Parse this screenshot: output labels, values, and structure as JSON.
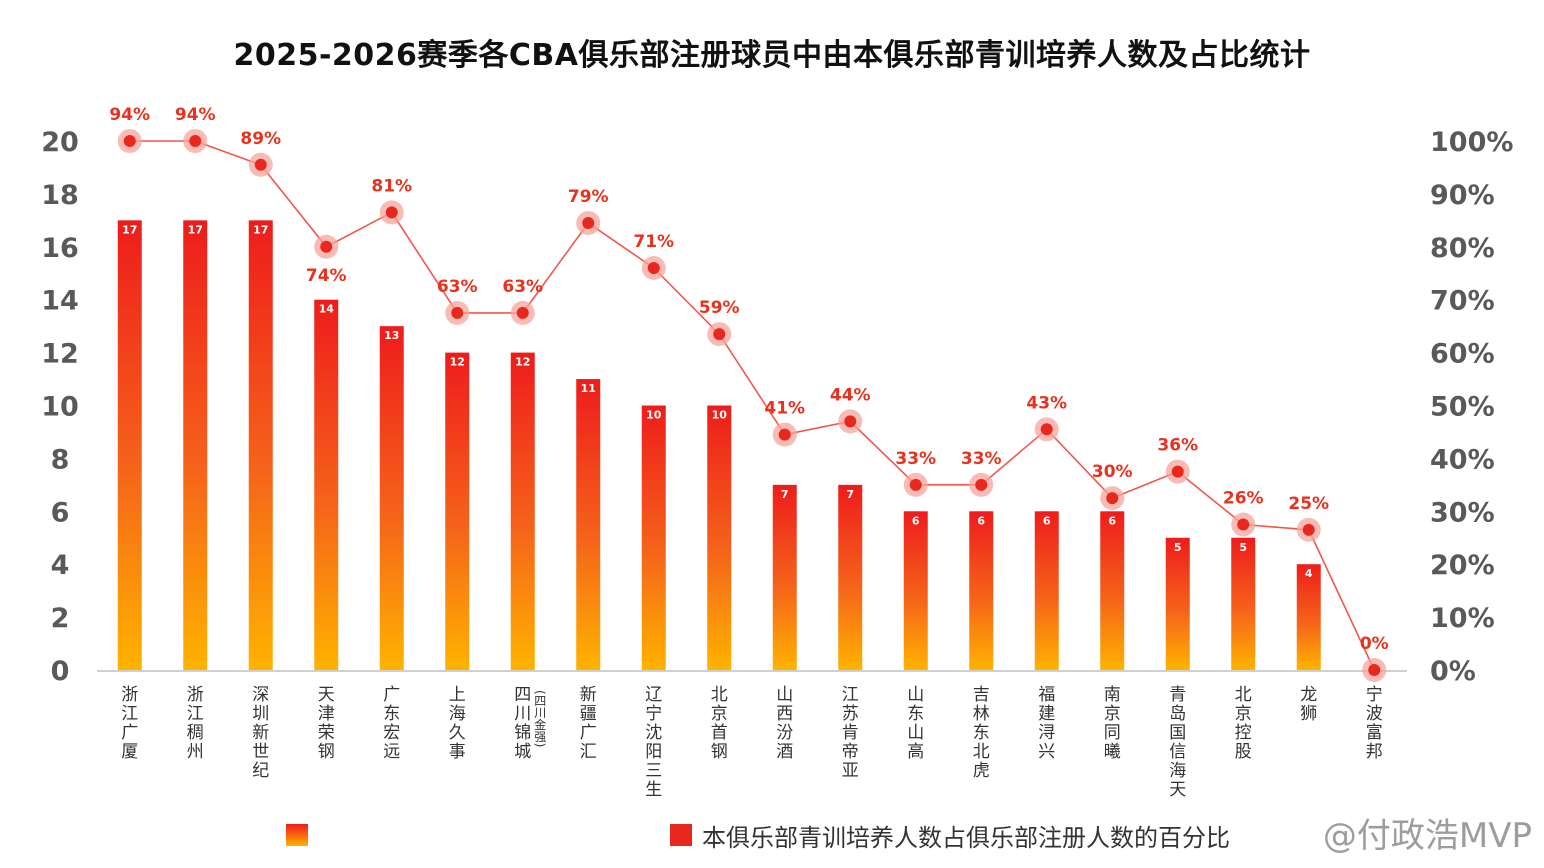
{
  "chart_data": {
    "type": "bar",
    "title": "2025-2026赛季各CBA俱乐部注册球员中由本俱乐部青训培养人数及占比统计",
    "categories": [
      "浙江广厦",
      "浙江稠州",
      "深圳新世纪",
      "天津荣钢",
      "广东宏远",
      "上海久事",
      "四川锦城(四川金强)",
      "新疆广汇",
      "辽宁沈阳三生",
      "北京首钢",
      "山西汾酒",
      "江苏肯帝亚",
      "山东山高",
      "吉林东北虎",
      "福建浔兴",
      "南京同曦",
      "青岛国信海天",
      "北京控股",
      "龙狮",
      "宁波富邦"
    ],
    "category_lines": [
      [
        "浙",
        "江",
        "广",
        "厦"
      ],
      [
        "浙",
        "江",
        "稠",
        "州"
      ],
      [
        "深",
        "圳",
        "新",
        "世",
        "纪"
      ],
      [
        "天",
        "津",
        "荣",
        "钢"
      ],
      [
        "广",
        "东",
        "宏",
        "远"
      ],
      [
        "上",
        "海",
        "久",
        "事"
      ],
      [
        "四",
        "川",
        "锦",
        "城"
      ],
      [
        "新",
        "疆",
        "广",
        "汇"
      ],
      [
        "辽",
        "宁",
        "沈",
        "阳",
        "三",
        "生"
      ],
      [
        "北",
        "京",
        "首",
        "钢"
      ],
      [
        "山",
        "西",
        "汾",
        "酒"
      ],
      [
        "江",
        "苏",
        "肯",
        "帝",
        "亚"
      ],
      [
        "山",
        "东",
        "山",
        "高"
      ],
      [
        "吉",
        "林",
        "东",
        "北",
        "虎"
      ],
      [
        "福",
        "建",
        "浔",
        "兴"
      ],
      [
        "南",
        "京",
        "同",
        "曦"
      ],
      [
        "青",
        "岛",
        "国",
        "信",
        "海",
        "天"
      ],
      [
        "北",
        "京",
        "控",
        "股"
      ],
      [
        "龙",
        "狮"
      ],
      [
        "宁",
        "波",
        "富",
        "邦"
      ]
    ],
    "category_side_note": [
      "",
      "",
      "",
      "",
      "",
      "",
      "(四川金强)",
      "",
      "",
      "",
      "",
      "",
      "",
      "",
      "",
      "",
      "",
      "",
      "",
      ""
    ],
    "series": [
      {
        "values": [
          17,
          17,
          17,
          14,
          13,
          12,
          12,
          11,
          10,
          10,
          7,
          7,
          6,
          6,
          6,
          6,
          5,
          5,
          4,
          0
        ],
        "axis": "left",
        "type": "bar"
      },
      {
        "values": [
          94,
          94,
          89,
          74,
          81,
          63,
          63,
          79,
          71,
          59,
          41,
          44,
          33,
          33,
          43,
          30,
          36,
          26,
          25,
          0
        ],
        "axis": "right",
        "type": "line"
      }
    ],
    "plotted_right_values": [
      100,
      100,
      95.5,
      80,
      86.5,
      67.5,
      67.5,
      84.5,
      76,
      63.5,
      44.5,
      47,
      35,
      35,
      45.5,
      32.5,
      37.5,
      27.5,
      26.5,
      0
    ],
    "percent_labels": [
      "94%",
      "94%",
      "89%",
      "74%",
      "81%",
      "63%",
      "63%",
      "79%",
      "71%",
      "59%",
      "41%",
      "44%",
      "33%",
      "33%",
      "43%",
      "30%",
      "36%",
      "26%",
      "25%",
      "0%"
    ],
    "left_ylim": [
      0,
      20
    ],
    "left_ticks": [
      "0",
      "2",
      "4",
      "6",
      "8",
      "10",
      "12",
      "14",
      "16",
      "18",
      "20"
    ],
    "right_ylim": [
      0,
      100
    ],
    "right_ticks": [
      "0%",
      "10%",
      "20%",
      "30%",
      "40%",
      "50%",
      "60%",
      "70%",
      "80%",
      "90%",
      "100%"
    ],
    "grid": false,
    "legend_position": "bottom",
    "legend": {
      "bar_label": "",
      "line_label": "本俱乐部青训培养人数占俱乐部注册人数的百分比"
    },
    "colors": {
      "bar_top": "#ee1c1c",
      "bar_bottom": "#ffb300",
      "line": "#ee3b2b",
      "marker": "#e8281e",
      "marker_halo": "#f6a49c",
      "pct_label": "#e8321e",
      "tick": "#595959",
      "axis": "#bfbfbf"
    }
  },
  "watermark": "@付政浩MVP"
}
